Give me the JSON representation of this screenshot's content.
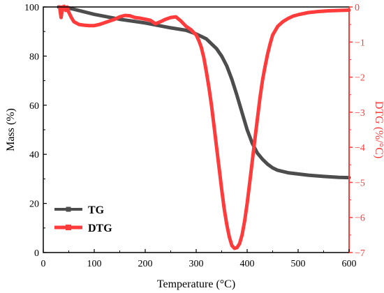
{
  "chart_data": {
    "type": "line",
    "xlabel": "Temperature (°C)",
    "ylabel_left": "Mass (%)",
    "ylabel_right": "DTG (%/°C)",
    "xlim": [
      0,
      600
    ],
    "ylim_left": [
      0,
      100
    ],
    "ylim_right": [
      -7,
      0
    ],
    "x_ticks": [
      0,
      100,
      200,
      300,
      400,
      500,
      600
    ],
    "y_left_ticks": [
      0,
      20,
      40,
      60,
      80,
      100
    ],
    "y_right_ticks": [
      -7,
      -6,
      -5,
      -4,
      -3,
      -2,
      -1,
      0
    ],
    "grid": false,
    "legend_position": "bottom-left",
    "colors": {
      "tg": "#4d4d4d",
      "dtg": "#ff3b3b",
      "axis_right": "#ff3b3b",
      "axis_left": "#000000"
    },
    "series": [
      {
        "name": "TG",
        "axis": "left",
        "x": [
          30,
          50,
          100,
          150,
          200,
          250,
          280,
          300,
          320,
          340,
          350,
          360,
          370,
          380,
          390,
          400,
          410,
          420,
          430,
          440,
          450,
          460,
          480,
          500,
          520,
          550,
          580,
          600
        ],
        "y": [
          100,
          99.6,
          97,
          95,
          93.5,
          91.5,
          90.5,
          89,
          87,
          83,
          80,
          76,
          70.5,
          64,
          57,
          50,
          44.5,
          40.5,
          38,
          36,
          34.5,
          33.5,
          32.5,
          32,
          31.5,
          31,
          30.6,
          30.5
        ]
      },
      {
        "name": "DTG",
        "axis": "right",
        "x": [
          32,
          35,
          38,
          41,
          44,
          47,
          50,
          55,
          60,
          70,
          80,
          90,
          100,
          110,
          120,
          130,
          140,
          150,
          160,
          170,
          180,
          190,
          200,
          210,
          220,
          230,
          240,
          250,
          260,
          270,
          280,
          290,
          300,
          305,
          310,
          315,
          320,
          325,
          330,
          335,
          340,
          345,
          350,
          355,
          360,
          365,
          370,
          375,
          380,
          385,
          390,
          395,
          400,
          405,
          410,
          415,
          420,
          425,
          430,
          435,
          440,
          445,
          450,
          460,
          470,
          480,
          490,
          500,
          520,
          540,
          560,
          580,
          600
        ],
        "y": [
          0,
          -0.3,
          0,
          0.02,
          -0.1,
          0,
          -0.15,
          -0.3,
          -0.42,
          -0.5,
          -0.52,
          -0.53,
          -0.53,
          -0.5,
          -0.45,
          -0.4,
          -0.35,
          -0.28,
          -0.24,
          -0.25,
          -0.3,
          -0.32,
          -0.35,
          -0.38,
          -0.48,
          -0.42,
          -0.35,
          -0.3,
          -0.28,
          -0.4,
          -0.55,
          -0.65,
          -0.8,
          -0.95,
          -1.15,
          -1.45,
          -1.85,
          -2.3,
          -2.8,
          -3.4,
          -4.0,
          -4.6,
          -5.2,
          -5.75,
          -6.2,
          -6.55,
          -6.8,
          -6.88,
          -6.86,
          -6.75,
          -6.5,
          -6.1,
          -5.6,
          -5.0,
          -4.4,
          -3.8,
          -3.2,
          -2.6,
          -2.1,
          -1.7,
          -1.35,
          -1.05,
          -0.8,
          -0.55,
          -0.42,
          -0.33,
          -0.26,
          -0.22,
          -0.16,
          -0.13,
          -0.11,
          -0.1,
          -0.09
        ]
      }
    ]
  }
}
